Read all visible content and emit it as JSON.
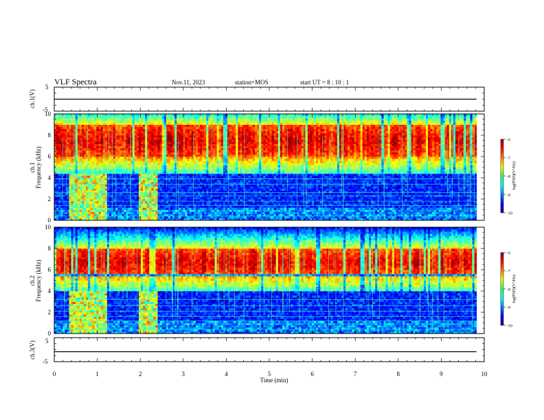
{
  "header": {
    "title": "VLF Spectra",
    "date": "Nov.11, 2023",
    "station": "station=MOS",
    "start_ut": "start  UT =   8 : 10 : 1"
  },
  "chart_data": [
    {
      "type": "line",
      "panel": "ch1-waveform",
      "ylabel": "ch.1(V)",
      "ylim": [
        -5,
        5
      ],
      "y_ticks": [
        "5",
        "-5"
      ],
      "x_range_min": [
        0,
        9.82
      ],
      "value": 0
    },
    {
      "type": "heatmap",
      "panel": "ch1-spectrogram",
      "ylabel_line1": "ch.1",
      "ylabel_line2": "Frequency (kHz)",
      "ylim_khz": [
        0,
        10
      ],
      "y_ticks": [
        "0",
        "2",
        "4",
        "6",
        "8",
        "10"
      ],
      "x_range_min": [
        0,
        9.82
      ],
      "colorbar": {
        "label": "log(PSD)(V²/Hz)",
        "range": [
          -10,
          -6
        ],
        "ticks": [
          "-6",
          "-7",
          "-8",
          "-9",
          "-10"
        ]
      },
      "intense_band_khz": [
        6,
        9
      ],
      "hiss_band_khz": [
        4.5,
        6.2
      ],
      "broadband_bursts_min": [
        [
          0.35,
          1.25
        ],
        [
          1.95,
          2.4
        ]
      ]
    },
    {
      "type": "heatmap",
      "panel": "ch2-spectrogram",
      "ylabel_line1": "ch.2",
      "ylabel_line2": "Frequency (kHz)",
      "ylim_khz": [
        0,
        10
      ],
      "y_ticks": [
        "0",
        "2",
        "4",
        "6",
        "8",
        "10"
      ],
      "x_range_min": [
        0,
        9.82
      ],
      "colorbar": {
        "label": "log(PSD)(V²/Hz)",
        "range": [
          -10,
          -6
        ],
        "ticks": [
          "-6",
          "-7",
          "-8",
          "-9",
          "-10"
        ]
      },
      "intense_band_khz": [
        5.5,
        8
      ],
      "hiss_band_khz": [
        4,
        5.5
      ],
      "broadband_bursts_min": [
        [
          0.35,
          1.25
        ],
        [
          1.95,
          2.4
        ]
      ]
    },
    {
      "type": "line",
      "panel": "ch3-waveform",
      "ylabel": "ch.3(V)",
      "ylim": [
        -5,
        5
      ],
      "y_ticks": [
        "5",
        "-5"
      ],
      "xlabel": "Time (min)",
      "xlim": [
        0,
        10
      ],
      "x_ticks": [
        "0",
        "1",
        "2",
        "3",
        "4",
        "5",
        "6",
        "7",
        "8",
        "9",
        "10"
      ],
      "x_range_min": [
        0,
        9.82
      ],
      "value": 0
    }
  ]
}
